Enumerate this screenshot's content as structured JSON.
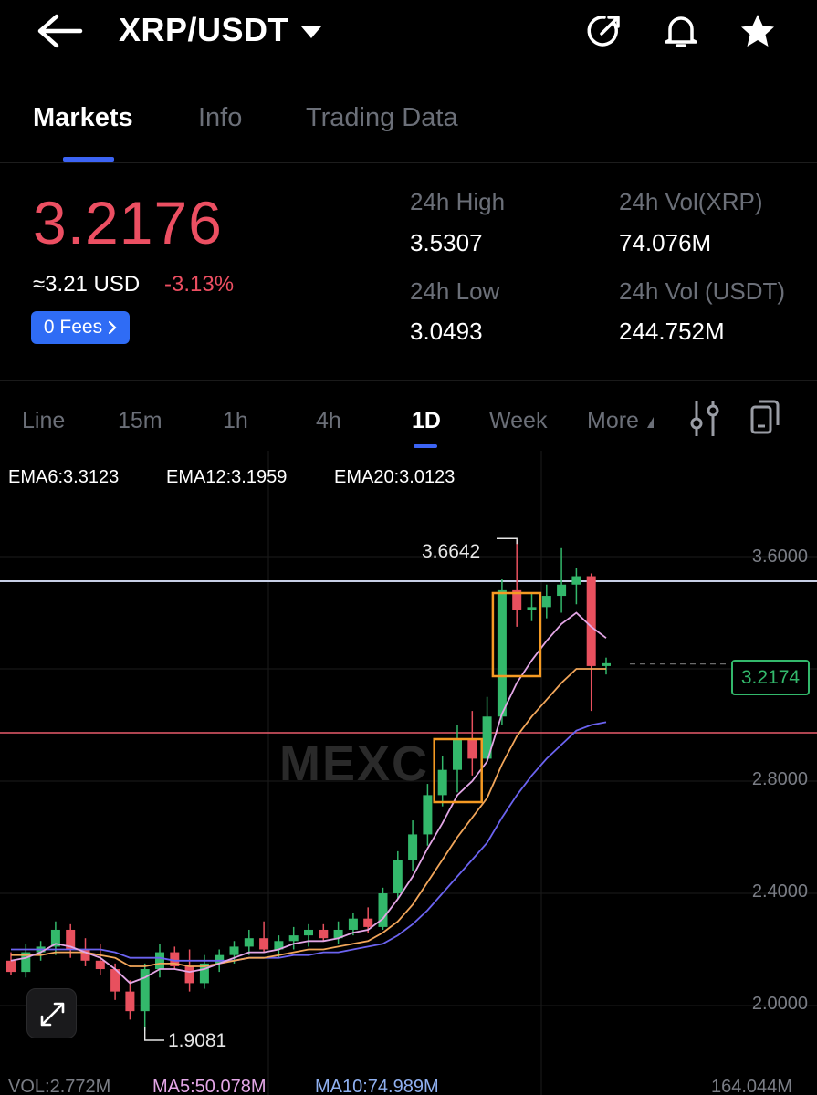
{
  "header": {
    "pair": "XRP/USDT"
  },
  "tabs": [
    "Markets",
    "Info",
    "Trading Data"
  ],
  "ticker": {
    "last_price": "3.2176",
    "usd_equiv": "≈3.21 USD",
    "change": "-3.13%",
    "fees_label": "0 Fees",
    "high_label": "24h High",
    "high_value": "3.5307",
    "low_label": "24h Low",
    "low_value": "3.0493",
    "vol_xrp_label": "24h Vol(XRP)",
    "vol_xrp_value": "74.076M",
    "vol_usdt_label": "24h Vol (USDT)",
    "vol_usdt_value": "244.752M"
  },
  "timeframes": [
    "Line",
    "15m",
    "1h",
    "4h",
    "1D",
    "Week",
    "More"
  ],
  "indicators": {
    "ema6": "EMA6:3.3123",
    "ema12": "EMA12:3.1959",
    "ema20": "EMA20:3.0123",
    "ema6_color": "#e3a6e6",
    "ema12_color": "#f2a65a",
    "ema20_color": "#6b63f0"
  },
  "volume_bar": {
    "vol": "VOL:2.772M",
    "ma5": "MA5:50.078M",
    "ma10": "MA10:74.989M",
    "max": "164.044M"
  },
  "watermark": "MEXC",
  "chart_data": {
    "type": "candlestick",
    "y_ticks": [
      "3.6000",
      "2.8000",
      "2.4000",
      "2.0000"
    ],
    "current_price_label": "3.2174",
    "high_annotation": "3.6642",
    "low_annotation": "1.9081",
    "ylim": [
      1.85,
      3.85
    ],
    "candles": [
      [
        2.16,
        2.19,
        2.11,
        2.12
      ],
      [
        2.12,
        2.22,
        2.1,
        2.19
      ],
      [
        2.19,
        2.23,
        2.16,
        2.21
      ],
      [
        2.21,
        2.3,
        2.18,
        2.27
      ],
      [
        2.27,
        2.29,
        2.17,
        2.2
      ],
      [
        2.2,
        2.24,
        2.14,
        2.16
      ],
      [
        2.16,
        2.22,
        2.11,
        2.13
      ],
      [
        2.13,
        2.15,
        2.02,
        2.05
      ],
      [
        2.05,
        2.09,
        1.95,
        1.98
      ],
      [
        1.98,
        2.15,
        1.91,
        2.13
      ],
      [
        2.13,
        2.22,
        2.1,
        2.19
      ],
      [
        2.19,
        2.21,
        2.13,
        2.14
      ],
      [
        2.14,
        2.2,
        2.05,
        2.08
      ],
      [
        2.08,
        2.18,
        2.06,
        2.15
      ],
      [
        2.15,
        2.2,
        2.12,
        2.18
      ],
      [
        2.18,
        2.23,
        2.15,
        2.21
      ],
      [
        2.21,
        2.27,
        2.18,
        2.24
      ],
      [
        2.24,
        2.3,
        2.19,
        2.2
      ],
      [
        2.2,
        2.25,
        2.17,
        2.23
      ],
      [
        2.23,
        2.28,
        2.2,
        2.25
      ],
      [
        2.25,
        2.29,
        2.21,
        2.27
      ],
      [
        2.27,
        2.29,
        2.23,
        2.24
      ],
      [
        2.24,
        2.3,
        2.22,
        2.27
      ],
      [
        2.27,
        2.33,
        2.25,
        2.31
      ],
      [
        2.31,
        2.35,
        2.26,
        2.28
      ],
      [
        2.28,
        2.42,
        2.27,
        2.4
      ],
      [
        2.4,
        2.55,
        2.38,
        2.52
      ],
      [
        2.52,
        2.66,
        2.48,
        2.61
      ],
      [
        2.61,
        2.79,
        2.57,
        2.75
      ],
      [
        2.75,
        2.89,
        2.71,
        2.84
      ],
      [
        2.84,
        3.0,
        2.76,
        2.95
      ],
      [
        2.95,
        3.05,
        2.82,
        2.88
      ],
      [
        2.88,
        3.1,
        2.87,
        3.03
      ],
      [
        3.03,
        3.52,
        3.0,
        3.48
      ],
      [
        3.48,
        3.66,
        3.35,
        3.41
      ],
      [
        3.41,
        3.47,
        3.37,
        3.42
      ],
      [
        3.42,
        3.5,
        3.38,
        3.46
      ],
      [
        3.46,
        3.63,
        3.4,
        3.5
      ],
      [
        3.5,
        3.56,
        3.43,
        3.53
      ],
      [
        3.53,
        3.54,
        3.05,
        3.21
      ],
      [
        3.21,
        3.24,
        3.18,
        3.22
      ]
    ],
    "ema6": [
      2.16,
      2.17,
      2.19,
      2.22,
      2.21,
      2.19,
      2.17,
      2.13,
      2.08,
      2.1,
      2.13,
      2.13,
      2.12,
      2.13,
      2.15,
      2.17,
      2.19,
      2.19,
      2.2,
      2.22,
      2.23,
      2.23,
      2.24,
      2.26,
      2.27,
      2.31,
      2.38,
      2.46,
      2.56,
      2.65,
      2.75,
      2.8,
      2.87,
      3.04,
      3.15,
      3.23,
      3.3,
      3.36,
      3.4,
      3.35,
      3.31
    ],
    "ema12": [
      2.18,
      2.18,
      2.18,
      2.19,
      2.19,
      2.19,
      2.18,
      2.17,
      2.14,
      2.14,
      2.15,
      2.15,
      2.14,
      2.14,
      2.15,
      2.16,
      2.17,
      2.17,
      2.18,
      2.19,
      2.2,
      2.2,
      2.21,
      2.22,
      2.23,
      2.26,
      2.3,
      2.36,
      2.44,
      2.52,
      2.6,
      2.67,
      2.74,
      2.86,
      2.96,
      3.03,
      3.09,
      3.15,
      3.2,
      3.2,
      3.2
    ],
    "ema20": [
      2.2,
      2.2,
      2.2,
      2.2,
      2.2,
      2.2,
      2.2,
      2.19,
      2.17,
      2.17,
      2.17,
      2.16,
      2.16,
      2.16,
      2.16,
      2.16,
      2.17,
      2.17,
      2.17,
      2.18,
      2.18,
      2.19,
      2.19,
      2.2,
      2.21,
      2.22,
      2.25,
      2.29,
      2.34,
      2.4,
      2.46,
      2.52,
      2.58,
      2.67,
      2.75,
      2.82,
      2.88,
      2.93,
      2.98,
      3.0,
      3.01
    ]
  }
}
